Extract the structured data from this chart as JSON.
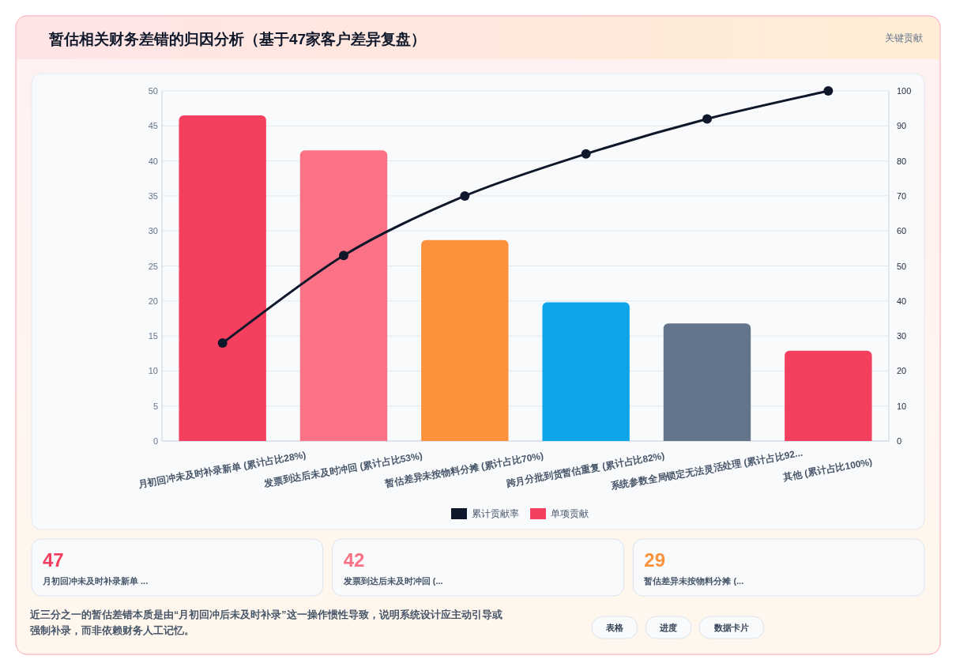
{
  "chart_data": [
    {
      "type": "bar",
      "title": "暂估相关财务差错的归因分析（基于47家客户差异复盘）",
      "annotations": [
        "关键贡献"
      ],
      "categories": [
        "月初回冲未及时补录新单 (累计占比28%)",
        "发票到达后未及时冲回 (累计占比53%)",
        "暂估差异未按物料分摊 (累计占比70%)",
        "跨月分批到货暂估重复 (累计占比82%)",
        "系统参数全局锁定无法灵活处理 (累计占比92...",
        "其他 (累计占比100%)"
      ],
      "series": [
        {
          "name": "累计贡献率",
          "type": "line",
          "axis": "y2",
          "color": "#0f172a",
          "values": [
            28,
            53,
            70,
            82,
            92,
            100
          ]
        },
        {
          "name": "单项贡献",
          "type": "bar",
          "color": "#f43f5e",
          "colors": [
            "#f43f5e",
            "#fb7185",
            "#fb923c",
            "#0ea5e9",
            "#64748b",
            "#f43f5e"
          ],
          "values": [
            46.5,
            41.5,
            28.7,
            19.8,
            16.8,
            12.9
          ]
        }
      ],
      "ylim": [
        0,
        50
      ],
      "yticks": [
        0,
        5,
        10,
        15,
        20,
        25,
        30,
        35,
        40,
        45,
        50
      ],
      "y2lim": [
        0,
        100
      ],
      "y2ticks": [
        0,
        10,
        20,
        30,
        40,
        50,
        60,
        70,
        80,
        90,
        100
      ],
      "grid": "y",
      "legend": "bottom",
      "marker": "circle"
    },
    {
      "type": "other",
      "colors": [
        "#f43f5e",
        "#fb7185",
        "#fb923c"
      ],
      "annotations": [
        "47",
        "月初回冲未及时补录新单 ...",
        "42",
        "发票到达后未及时冲回 (...",
        "29",
        "暂估差异未按物料分摊 (...",
        "近三分之一的暂估差错本质是由“月初回冲后未及时补录”这一操作惯性导致，说明系统设计应主动引导或强制补录，而非依赖财务人工记忆。",
        "表格",
        "进度",
        "数据卡片"
      ]
    }
  ]
}
